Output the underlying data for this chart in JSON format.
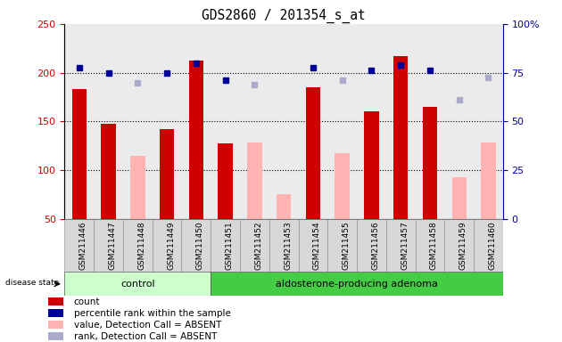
{
  "title": "GDS2860 / 201354_s_at",
  "samples": [
    "GSM211446",
    "GSM211447",
    "GSM211448",
    "GSM211449",
    "GSM211450",
    "GSM211451",
    "GSM211452",
    "GSM211453",
    "GSM211454",
    "GSM211455",
    "GSM211456",
    "GSM211457",
    "GSM211458",
    "GSM211459",
    "GSM211460"
  ],
  "count_values": [
    183,
    148,
    null,
    142,
    212,
    127,
    null,
    null,
    185,
    null,
    160,
    217,
    165,
    null,
    null
  ],
  "count_absent": [
    null,
    null,
    115,
    null,
    null,
    null,
    128,
    75,
    null,
    117,
    null,
    null,
    null,
    93,
    128
  ],
  "percentile_values": [
    205,
    200,
    null,
    200,
    210,
    192,
    null,
    null,
    205,
    null,
    202,
    208,
    202,
    null,
    null
  ],
  "rank_absent": [
    null,
    null,
    190,
    null,
    null,
    null,
    188,
    null,
    null,
    192,
    null,
    null,
    null,
    172,
    195
  ],
  "group_labels": [
    "control",
    "aldosterone-producing adenoma"
  ],
  "ctrl_count": 5,
  "ylim_left": [
    50,
    250
  ],
  "ylim_right": [
    0,
    100
  ],
  "yticks_left": [
    50,
    100,
    150,
    200,
    250
  ],
  "yticks_right": [
    0,
    25,
    50,
    75,
    100
  ],
  "ytick_labels_right": [
    "0",
    "25",
    "50",
    "75",
    "100%"
  ],
  "hgrid_lines": [
    100,
    150,
    200
  ],
  "color_count": "#cc0000",
  "color_absent_value": "#ffb3b3",
  "color_percentile": "#000099",
  "color_rank_absent": "#aaaacc",
  "color_control_bg": "#ccffcc",
  "color_adenoma_bg": "#44cc44",
  "color_col_bg": "#d8d8d8",
  "bar_width": 0.5,
  "legend_items": [
    {
      "label": "count",
      "color": "#cc0000"
    },
    {
      "label": "percentile rank within the sample",
      "color": "#000099"
    },
    {
      "label": "value, Detection Call = ABSENT",
      "color": "#ffb3b3"
    },
    {
      "label": "rank, Detection Call = ABSENT",
      "color": "#aaaacc"
    }
  ],
  "disease_state_label": "disease state"
}
